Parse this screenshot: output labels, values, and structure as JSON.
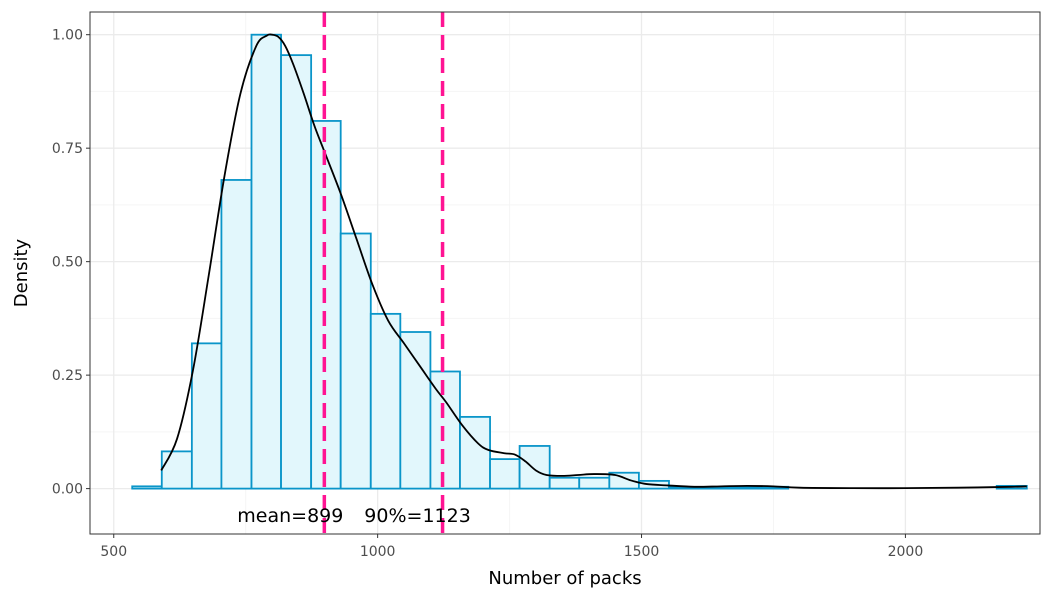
{
  "chart_data": {
    "type": "histogram",
    "xlabel": "Number of packs",
    "ylabel": "Density",
    "xlim": [
      455,
      2255
    ],
    "ylim": [
      -0.1,
      1.05
    ],
    "x_ticks": [
      500,
      1000,
      1500,
      2000
    ],
    "y_ticks": [
      0.0,
      0.25,
      0.5,
      0.75,
      1.0
    ],
    "x_tick_labels": [
      "500",
      "1000",
      "1500",
      "2000"
    ],
    "y_tick_labels": [
      "0.00",
      "0.25",
      "0.50",
      "0.75",
      "1.00"
    ],
    "grid": true,
    "bin_width": 56.5,
    "bins": [
      {
        "x0": 535,
        "x1": 591,
        "value": 0.005
      },
      {
        "x0": 591,
        "x1": 648,
        "value": 0.082
      },
      {
        "x0": 648,
        "x1": 704,
        "value": 0.32
      },
      {
        "x0": 704,
        "x1": 761,
        "value": 0.68
      },
      {
        "x0": 761,
        "x1": 817,
        "value": 1.0
      },
      {
        "x0": 817,
        "x1": 874,
        "value": 0.955
      },
      {
        "x0": 874,
        "x1": 930,
        "value": 0.81
      },
      {
        "x0": 930,
        "x1": 987,
        "value": 0.562
      },
      {
        "x0": 987,
        "x1": 1043,
        "value": 0.385
      },
      {
        "x0": 1043,
        "x1": 1100,
        "value": 0.345
      },
      {
        "x0": 1100,
        "x1": 1156,
        "value": 0.258
      },
      {
        "x0": 1156,
        "x1": 1213,
        "value": 0.158
      },
      {
        "x0": 1213,
        "x1": 1269,
        "value": 0.065
      },
      {
        "x0": 1269,
        "x1": 1326,
        "value": 0.094
      },
      {
        "x0": 1326,
        "x1": 1382,
        "value": 0.024
      },
      {
        "x0": 1382,
        "x1": 1439,
        "value": 0.024
      },
      {
        "x0": 1439,
        "x1": 1495,
        "value": 0.035
      },
      {
        "x0": 1495,
        "x1": 1552,
        "value": 0.017
      },
      {
        "x0": 1552,
        "x1": 1608,
        "value": 0.003
      },
      {
        "x0": 1608,
        "x1": 1665,
        "value": 0.003
      },
      {
        "x0": 1665,
        "x1": 1721,
        "value": 0.003
      },
      {
        "x0": 1721,
        "x1": 1778,
        "value": 0.004
      },
      {
        "x0": 2173,
        "x1": 2230,
        "value": 0.006
      }
    ],
    "density_curve": {
      "x": [
        590,
        620,
        650,
        680,
        710,
        740,
        770,
        790,
        800,
        812,
        825,
        840,
        860,
        880,
        900,
        930,
        960,
        990,
        1020,
        1050,
        1080,
        1110,
        1130,
        1160,
        1190,
        1210,
        1240,
        1260,
        1280,
        1300,
        1320,
        1350,
        1380,
        1410,
        1450,
        1480,
        1510,
        1550,
        1600,
        1650,
        1700,
        1750,
        1800,
        1900,
        2000,
        2100,
        2200,
        2230
      ],
      "y": [
        0.04,
        0.11,
        0.26,
        0.47,
        0.69,
        0.87,
        0.975,
        0.998,
        1.0,
        0.995,
        0.975,
        0.935,
        0.87,
        0.8,
        0.74,
        0.65,
        0.55,
        0.45,
        0.37,
        0.32,
        0.27,
        0.22,
        0.19,
        0.14,
        0.1,
        0.085,
        0.078,
        0.075,
        0.06,
        0.04,
        0.03,
        0.028,
        0.03,
        0.032,
        0.03,
        0.018,
        0.01,
        0.007,
        0.004,
        0.005,
        0.006,
        0.005,
        0.002,
        0.001,
        0.001,
        0.002,
        0.004,
        0.005
      ]
    },
    "vlines": [
      {
        "x": 899,
        "label": "mean=899",
        "color": "#ff1493"
      },
      {
        "x": 1123,
        "label": "90%=1123",
        "color": "#ff1493"
      }
    ],
    "colors": {
      "bar_fill": "#e2f7fc",
      "bar_stroke": "#0a95c9",
      "curve": "#000000",
      "grid_major": "#ebebeb",
      "grid_minor": "#f5f5f5",
      "panel_border": "#333333"
    }
  }
}
